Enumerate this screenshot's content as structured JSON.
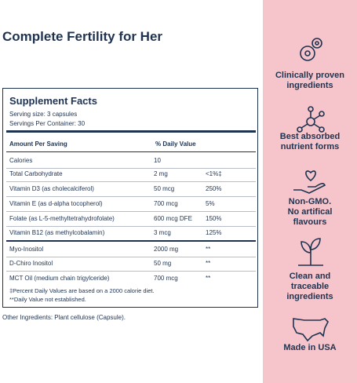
{
  "title": "Complete Fertility for Her",
  "facts": {
    "heading": "Supplement Facts",
    "serving_size": "Serving size: 3 capsules",
    "servings": "Servings Per Container: 30",
    "columns": [
      "Amount Per Saving",
      "% Daily Value"
    ],
    "rows": [
      [
        "Calories",
        "10"
      ],
      [
        "Total Carbohydrate",
        "2 mg",
        "<1%‡"
      ],
      [
        "Vitamin D3 (as cholecalciferol)",
        "50 mcg",
        "250%"
      ],
      [
        "Vitamin E (as d-alpha tocopherol)",
        "700 mcg",
        "5%"
      ],
      [
        "Folate (as L-5-methyltetrahydrofolate)",
        "600 mcg DFE",
        "150%"
      ],
      [
        "Vitamin B12 (as methylcobalamin)",
        "3 mcg",
        "125%"
      ],
      [
        "Myo-Inositol",
        "2000 mg",
        "**"
      ],
      [
        "D-Chiro Inositol",
        "50 mg",
        "**"
      ],
      [
        "MCT Oil (medium chain trigylceride)",
        "700 mcg",
        "**"
      ]
    ],
    "footnotes": [
      "‡Percent Daily Values are based on a 2000 calorie diet.",
      "**Daily Value not established."
    ]
  },
  "other_ingredients": "Other Ingredients: Plant cellulose (Capsule).",
  "features": [
    [
      "Clinically proven",
      "ingredients"
    ],
    [
      "Best absorbed",
      "nutrient forms"
    ],
    [
      "Non-GMO.",
      "No artifical",
      "flavours"
    ],
    [
      "Clean and",
      "traceable",
      "ingredients"
    ],
    [
      "Made in USA"
    ]
  ]
}
